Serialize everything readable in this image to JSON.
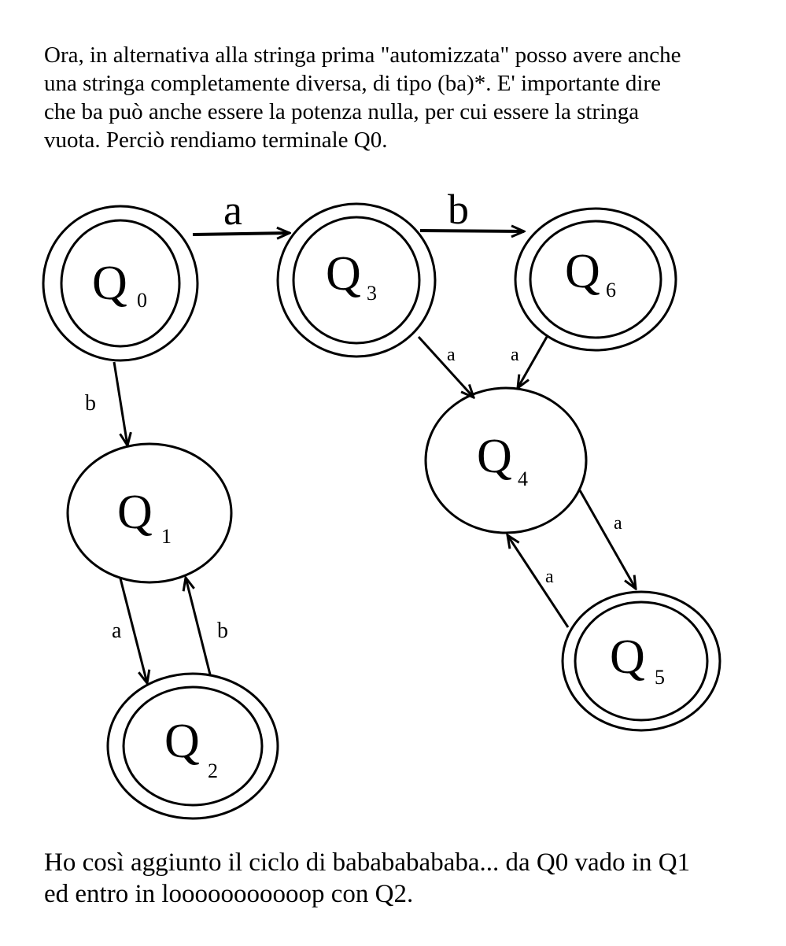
{
  "intro_lines": [
    "Ora, in alternativa alla stringa prima \"automizzata\" posso avere anche",
    "una stringa completamente diversa, di tipo (ba)*. E' importante dire",
    "che ba può anche essere la potenza nulla, per cui essere la stringa",
    "vuota. Perciò rendiamo terminale Q0."
  ],
  "outro_lines": [
    "Ho così aggiunto il ciclo di babababababa... da Q0 vado in Q1",
    "ed entro in looooooooooop con Q2."
  ],
  "states": {
    "q0": {
      "letter": "Q",
      "index": "0",
      "final": true
    },
    "q1": {
      "letter": "Q",
      "index": "1",
      "final": false
    },
    "q2": {
      "letter": "Q",
      "index": "2",
      "final": true
    },
    "q3": {
      "letter": "Q",
      "index": "3",
      "final": true
    },
    "q4": {
      "letter": "Q",
      "index": "4",
      "final": false
    },
    "q5": {
      "letter": "Q",
      "index": "5",
      "final": true
    },
    "q6": {
      "letter": "Q",
      "index": "6",
      "final": true
    }
  },
  "transitions": {
    "q0_q3": "a",
    "q3_q6": "b",
    "q0_q1": "b",
    "q1_q2": "a",
    "q2_q1": "b",
    "q3_q4": "a",
    "q6_q4": "a",
    "q4_q5": "a",
    "q5_q4": "a"
  }
}
